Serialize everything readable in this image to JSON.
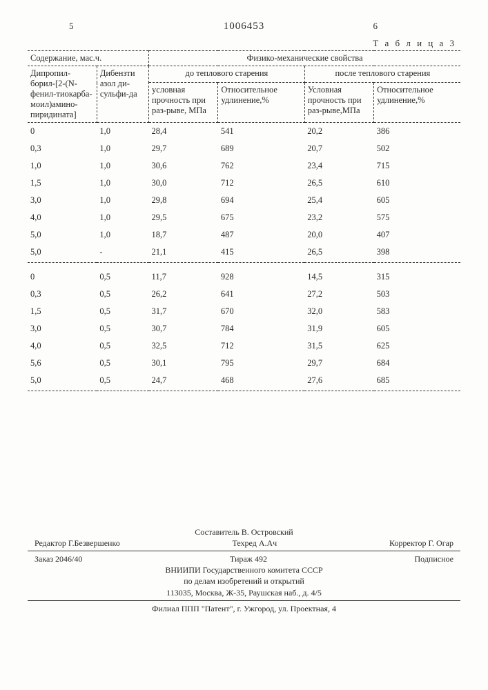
{
  "page_left": "5",
  "doc_number": "1006453",
  "page_right": "6",
  "table_caption": "Т а б л и ц а 3",
  "hdr": {
    "content": "Содержание, мас.ч.",
    "props": "Физико-механические свойства",
    "comp1": "Дипропил-борил-[2-(N-фенил-тиокарба-моил)амино-пиридината]",
    "comp2": "Дибензти азол ди-сульфи-да",
    "before": "до теплового старения",
    "after": "после теплового старения",
    "strength": "условная прочность при раз-рыве, МПа",
    "elong": "Относительное удлинение,%",
    "strength2": "Условная прочность при раз-рыве,МПа",
    "elong2": "Относительное удлинение,%"
  },
  "rows1": [
    [
      "0",
      "1,0",
      "28,4",
      "541",
      "20,2",
      "386"
    ],
    [
      "0,3",
      "1,0",
      "29,7",
      "689",
      "20,7",
      "502"
    ],
    [
      "1,0",
      "1,0",
      "30,6",
      "762",
      "23,4",
      "715"
    ],
    [
      "1,5",
      "1,0",
      "30,0",
      "712",
      "26,5",
      "610"
    ],
    [
      "3,0",
      "1,0",
      "29,8",
      "694",
      "25,4",
      "605"
    ],
    [
      "4,0",
      "1,0",
      "29,5",
      "675",
      "23,2",
      "575"
    ],
    [
      "5,0",
      "1,0",
      "18,7",
      "487",
      "20,0",
      "407"
    ],
    [
      "5,0",
      "-",
      "21,1",
      "415",
      "26,5",
      "398"
    ]
  ],
  "rows2": [
    [
      "0",
      "0,5",
      "11,7",
      "928",
      "14,5",
      "315"
    ],
    [
      "0,3",
      "0,5",
      "26,2",
      "641",
      "27,2",
      "503"
    ],
    [
      "1,5",
      "0,5",
      "31,7",
      "670",
      "32,0",
      "583"
    ],
    [
      "3,0",
      "0,5",
      "30,7",
      "784",
      "31,9",
      "605"
    ],
    [
      "4,0",
      "0,5",
      "32,5",
      "712",
      "31,5",
      "625"
    ],
    [
      "5,6",
      "0,5",
      "30,1",
      "795",
      "29,7",
      "684"
    ],
    [
      "5,0",
      "0,5",
      "24,7",
      "468",
      "27,6",
      "685"
    ]
  ],
  "footer": {
    "compiler": "Составитель В. Островский",
    "editor": "Редактор Г.Безвершенко",
    "tech": "Техред А.Ач",
    "corr": "Корректор Г. Огар",
    "order": "Заказ 2046/40",
    "tirage": "Тираж 492",
    "sign": "Подписное",
    "org1": "ВНИИПИ Государственного комитета СССР",
    "org2": "по делам изобретений и открытий",
    "addr": "113035, Москва, Ж-35, Раушская наб., д. 4/5",
    "branch": "Филиал ППП \"Патент\", г. Ужгород, ул. Проектная, 4"
  }
}
